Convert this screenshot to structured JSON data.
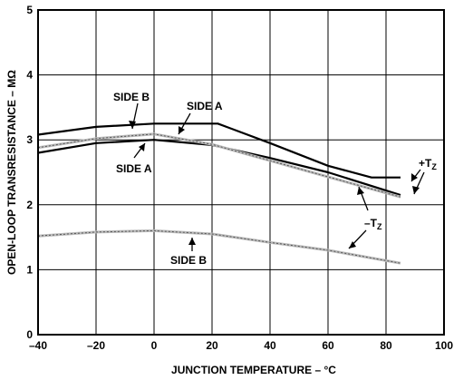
{
  "chart_data": {
    "type": "line",
    "title": "",
    "xlabel": "JUNCTION TEMPERATURE – °C",
    "ylabel": "OPEN-LOOP TRANSRESISTANCE – MΩ",
    "xlim": [
      -40,
      100
    ],
    "ylim": [
      0,
      5
    ],
    "x_ticks": [
      -40,
      -20,
      0,
      20,
      40,
      60,
      80,
      100
    ],
    "y_ticks": [
      0,
      1,
      2,
      3,
      4,
      5
    ],
    "x_tick_labels": [
      "–40",
      "–20",
      "0",
      "20",
      "40",
      "60",
      "80",
      "100"
    ],
    "y_tick_labels": [
      "0",
      "1",
      "2",
      "3",
      "4",
      "5"
    ],
    "grid": true,
    "series": [
      {
        "name": "+TZ SIDE B",
        "color": "#000000",
        "style": "solid",
        "x": [
          -40,
          -20,
          0,
          20,
          22,
          40,
          60,
          75,
          85
        ],
        "y": [
          3.08,
          3.2,
          3.25,
          3.25,
          3.25,
          2.95,
          2.6,
          2.42,
          2.42
        ]
      },
      {
        "name": "+TZ SIDE A",
        "color": "#000000",
        "style": "solid",
        "x": [
          -40,
          -20,
          0,
          20,
          40,
          60,
          85
        ],
        "y": [
          2.8,
          2.95,
          3.0,
          2.92,
          2.72,
          2.5,
          2.15
        ]
      },
      {
        "name": "–TZ SIDE A",
        "color": "#999999",
        "style": "dashed",
        "x": [
          -40,
          -20,
          0,
          20,
          40,
          60,
          85
        ],
        "y": [
          2.88,
          3.02,
          3.09,
          2.93,
          2.68,
          2.43,
          2.12
        ]
      },
      {
        "name": "–TZ SIDE B",
        "color": "#999999",
        "style": "dashed",
        "x": [
          -40,
          -20,
          0,
          20,
          40,
          60,
          85
        ],
        "y": [
          1.52,
          1.58,
          1.6,
          1.55,
          1.42,
          1.3,
          1.1
        ]
      }
    ],
    "annotations": [
      {
        "id": "side_b_top",
        "text": "SIDE B"
      },
      {
        "id": "side_a_top",
        "text": "SIDE A"
      },
      {
        "id": "side_a_mid",
        "text": "SIDE A"
      },
      {
        "id": "side_b_low",
        "text": "SIDE B"
      },
      {
        "id": "plus_tz",
        "text": "+T",
        "sub": "Z"
      },
      {
        "id": "minus_tz",
        "text": "–T",
        "sub": "Z"
      }
    ]
  }
}
